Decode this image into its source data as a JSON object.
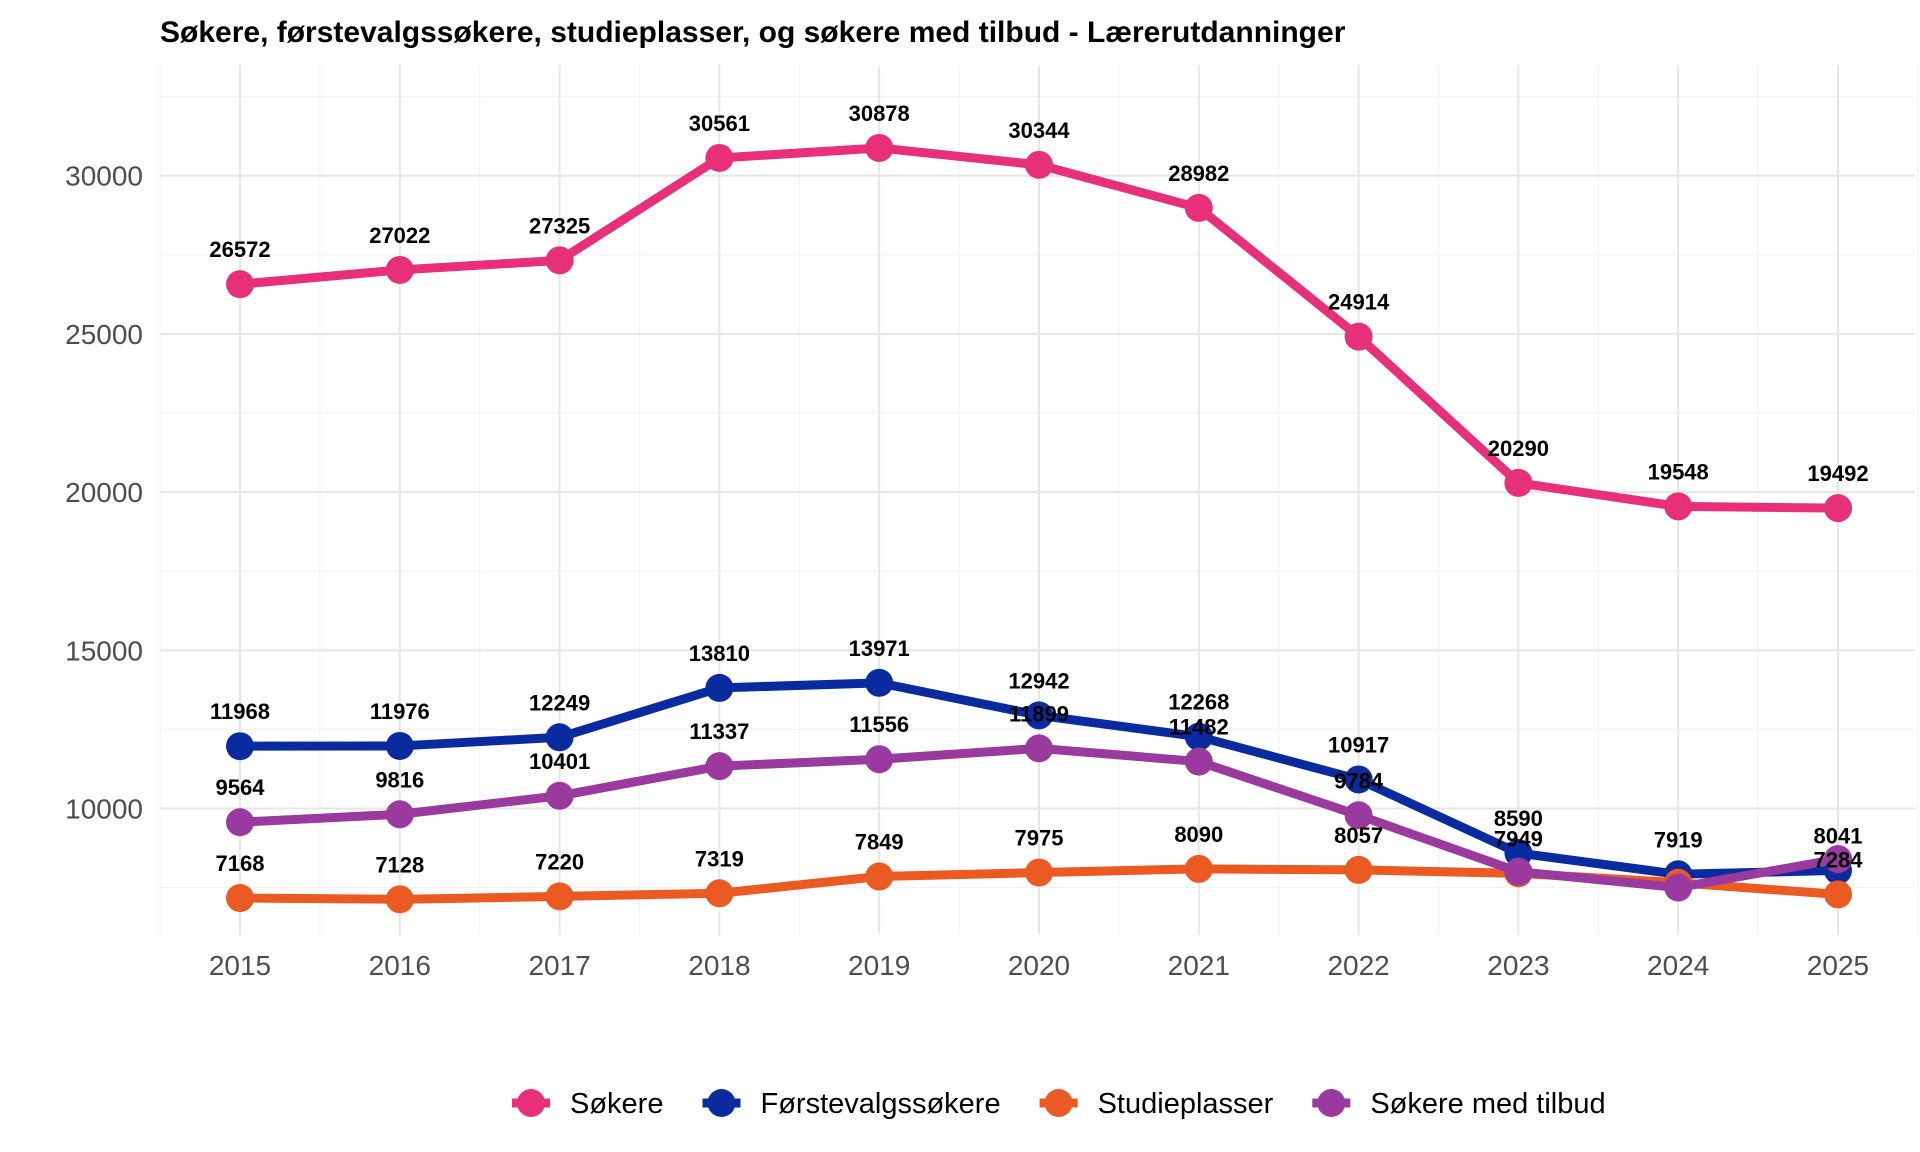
{
  "chart_data": {
    "type": "line",
    "title": "Søkere, førstevalgssøkere, studieplasser, og søkere med tilbud - Lærerutdanninger",
    "xlabel": "",
    "ylabel": "",
    "x": [
      "2015",
      "2016",
      "2017",
      "2018",
      "2019",
      "2020",
      "2021",
      "2022",
      "2023",
      "2024",
      "2025"
    ],
    "yticks": [
      "10000",
      "15000",
      "20000",
      "25000",
      "30000"
    ],
    "ylim": [
      6000,
      33500
    ],
    "grid": true,
    "legend_position": "bottom",
    "series": [
      {
        "name": "Søkere",
        "color": "#E8307A",
        "values": [
          26572,
          27022,
          27325,
          30561,
          30878,
          30344,
          28982,
          24914,
          20290,
          19548,
          19492
        ]
      },
      {
        "name": "Førstevalgssøkere",
        "color": "#0A2BA0",
        "values": [
          11968,
          11976,
          12249,
          13810,
          13971,
          12942,
          12268,
          10917,
          8590,
          7919,
          8041
        ]
      },
      {
        "name": "Studieplasser",
        "color": "#EB5A22",
        "values": [
          7168,
          7128,
          7220,
          7319,
          7849,
          7975,
          8090,
          8057,
          7949,
          7650,
          7284
        ]
      },
      {
        "name": "Søkere med tilbud",
        "color": "#9B3A9E",
        "values": [
          9564,
          9816,
          10401,
          11337,
          11556,
          11899,
          11482,
          9784,
          8000,
          7500,
          8400
        ]
      }
    ],
    "data_labels": {
      "Søkere": [
        "26572",
        "27022",
        "27325",
        "30561",
        "30878",
        "30344",
        "28982",
        "24914",
        "20290",
        "19548",
        "19492"
      ],
      "Førstevalgssøkere": [
        "11968",
        "11976",
        "12249",
        "13810",
        "13971",
        "12942",
        "12268",
        "10917",
        "8590",
        "7919",
        "8041"
      ],
      "Studieplasser": [
        "7168",
        "7128",
        "7220",
        "7319",
        "7849",
        "7975",
        "8090",
        "8057",
        "7949",
        "",
        "7284"
      ],
      "Søkere med tilbud": [
        "9564",
        "9816",
        "10401",
        "11337",
        "11556",
        "11899",
        "11482",
        "9784",
        "",
        "",
        ""
      ]
    }
  }
}
